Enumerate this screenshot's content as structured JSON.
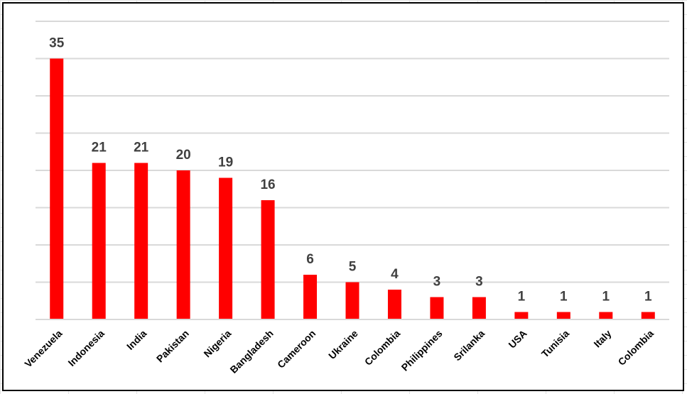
{
  "chart_data": {
    "type": "bar",
    "categories": [
      "Venezuela",
      "Indonesia",
      "India",
      "Pakistan",
      "Nigeria",
      "Bangladesh",
      "Cameroon",
      "Ukraine",
      "Colombia",
      "Philippines",
      "Srilanka",
      "USA",
      "Tunisia",
      "Italy",
      "Colombia"
    ],
    "values": [
      35,
      21,
      21,
      20,
      19,
      16,
      6,
      5,
      4,
      3,
      3,
      1,
      1,
      1,
      1
    ],
    "color": "#ff0000",
    "ylim": [
      0,
      40
    ],
    "yticks": [
      0,
      5,
      10,
      15,
      20,
      25,
      30,
      35,
      40
    ],
    "grid": true
  }
}
